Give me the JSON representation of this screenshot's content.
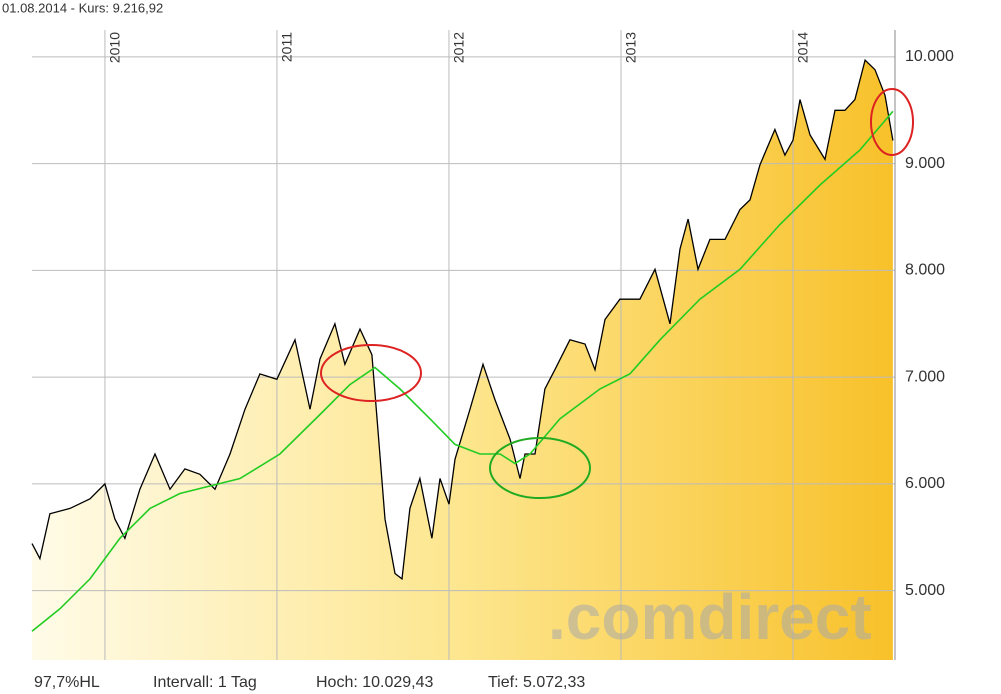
{
  "header": "01.08.2014  -  Kurs: 9.216,92",
  "chart_data": {
    "type": "line",
    "xlim": [
      2009.576,
      2014.593
    ],
    "xticks": [
      2010,
      2011,
      2012,
      2013,
      2014
    ],
    "ylim": [
      4350,
      10252
    ],
    "yticks": [
      {
        "value": 5000,
        "label": "5.000"
      },
      {
        "value": 6000,
        "label": "6.000"
      },
      {
        "value": 7000,
        "label": "7.000"
      },
      {
        "value": 8000,
        "label": "8.000"
      },
      {
        "value": 9000,
        "label": "9.000"
      },
      {
        "value": 10000,
        "label": "10.000"
      }
    ],
    "grid": true,
    "series": [
      {
        "color": "#000000",
        "area": true,
        "x": [
          2009.576,
          2009.622,
          2009.68,
          2009.797,
          2009.913,
          2010.0,
          2010.058,
          2010.116,
          2010.203,
          2010.291,
          2010.378,
          2010.465,
          2010.552,
          2010.64,
          2010.727,
          2010.814,
          2010.901,
          2011.0,
          2011.105,
          2011.192,
          2011.25,
          2011.337,
          2011.395,
          2011.483,
          2011.552,
          2011.587,
          2011.628,
          2011.686,
          2011.727,
          2011.773,
          2011.831,
          2011.901,
          2011.948,
          2012.0,
          2012.035,
          2012.122,
          2012.198,
          2012.267,
          2012.355,
          2012.413,
          2012.442,
          2012.5,
          2012.558,
          2012.616,
          2012.703,
          2012.791,
          2012.849,
          2012.907,
          2012.994,
          2013.11,
          2013.198,
          2013.285,
          2013.343,
          2013.39,
          2013.448,
          2013.517,
          2013.605,
          2013.692,
          2013.75,
          2013.808,
          2013.895,
          2013.953,
          2014.0,
          2014.041,
          2014.099,
          2014.186,
          2014.244,
          2014.302,
          2014.36,
          2014.419,
          2014.477,
          2014.535,
          2014.581
        ],
        "values": [
          5440,
          5300,
          5720,
          5770,
          5860,
          6000,
          5670,
          5490,
          5950,
          6280,
          5950,
          6140,
          6090,
          5950,
          6280,
          6700,
          7030,
          6980,
          7350,
          6700,
          7170,
          7500,
          7120,
          7450,
          7210,
          6510,
          5670,
          5160,
          5110,
          5770,
          6050,
          5490,
          6050,
          5810,
          6230,
          6700,
          7120,
          6790,
          6420,
          6050,
          6280,
          6280,
          6890,
          7070,
          7350,
          7310,
          7070,
          7540,
          7730,
          7730,
          8010,
          7500,
          8200,
          8480,
          8010,
          8290,
          8290,
          8570,
          8660,
          8990,
          9320,
          9080,
          9220,
          9600,
          9270,
          9040,
          9500,
          9500,
          9600,
          9970,
          9880,
          9640,
          9217
        ]
      },
      {
        "color": "#22cc22",
        "x": [
          2009.576,
          2009.738,
          2009.913,
          2010.087,
          2010.262,
          2010.436,
          2010.785,
          2011.017,
          2011.25,
          2011.424,
          2011.57,
          2011.715,
          2011.89,
          2012.035,
          2012.18,
          2012.297,
          2012.384,
          2012.471,
          2012.645,
          2012.878,
          2013.052,
          2013.227,
          2013.459,
          2013.692,
          2013.924,
          2014.157,
          2014.39,
          2014.581
        ],
        "values": [
          4620,
          4830,
          5110,
          5490,
          5770,
          5910,
          6050,
          6280,
          6650,
          6930,
          7090,
          6890,
          6610,
          6370,
          6280,
          6280,
          6190,
          6280,
          6610,
          6890,
          7030,
          7350,
          7730,
          8010,
          8430,
          8800,
          9130,
          9490
        ]
      }
    ]
  },
  "watermark": ".comdirect",
  "footer": [
    "97,7%HL",
    "Intervall: 1 Tag",
    "Hoch:  10.029,43",
    "Tief:  5.072,33"
  ]
}
